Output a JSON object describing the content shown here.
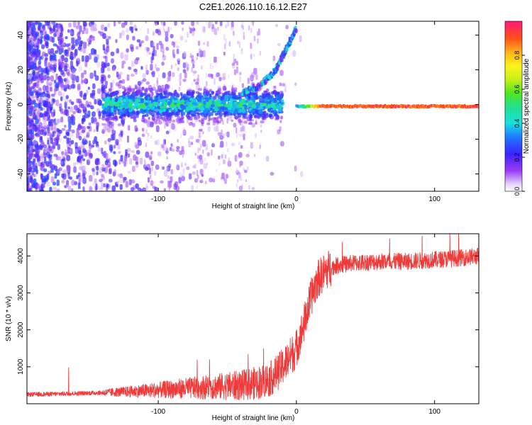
{
  "title": "C2E1.2026.110.16.12.E27",
  "chart_data": [
    {
      "type": "heatmap",
      "name": "spectrogram",
      "xlabel": "Height of straight line (km)",
      "ylabel": "Frequency (Hz)",
      "xlim": [
        -195,
        132
      ],
      "ylim": [
        -50,
        48
      ],
      "xticks": [
        -100,
        0,
        100
      ],
      "yticks": [
        -40,
        -20,
        0,
        20,
        40
      ],
      "grid": false,
      "colorbar": {
        "label": "Normalized spectral amplitude",
        "range": [
          0,
          1
        ],
        "ticks": [
          0.0,
          0.2,
          0.4,
          0.6,
          0.8
        ]
      },
      "features": [
        {
          "name": "carrier tone",
          "x_range": [
            0,
            132
          ],
          "frequency_hz": -1,
          "amplitude": 0.9
        },
        {
          "name": "doppler ramp",
          "points": [
            [
              -40,
              6
            ],
            [
              -25,
              12
            ],
            [
              -15,
              20
            ],
            [
              -10,
              28
            ],
            [
              -5,
              36
            ],
            [
              0,
              44
            ]
          ],
          "amplitude": 0.35
        },
        {
          "name": "noise band",
          "x_range": [
            -140,
            -10
          ],
          "frequency_hz": 0,
          "amplitude": 0.35
        }
      ]
    },
    {
      "type": "line",
      "name": "snr",
      "xlabel": "Height of straight line (km)",
      "ylabel": "SNR (10 * v/v)",
      "xlim": [
        -195,
        132
      ],
      "ylim": [
        0,
        4600
      ],
      "xticks": [
        -100,
        0,
        100
      ],
      "yticks": [
        1000,
        2000,
        3000,
        4000
      ],
      "grid": false,
      "color": "#f03a3a",
      "series": [
        {
          "name": "SNR",
          "x": [
            -195,
            -180,
            -160,
            -140,
            -120,
            -100,
            -80,
            -60,
            -40,
            -30,
            -20,
            -15,
            -10,
            -5,
            0,
            5,
            10,
            15,
            20,
            25,
            30,
            40,
            60,
            80,
            100,
            120,
            132
          ],
          "values": [
            250,
            260,
            280,
            300,
            330,
            370,
            420,
            460,
            500,
            560,
            650,
            800,
            1000,
            1250,
            1500,
            2100,
            2800,
            3350,
            3550,
            3700,
            3750,
            3800,
            3850,
            3850,
            3900,
            3950,
            4000
          ]
        }
      ]
    }
  ]
}
